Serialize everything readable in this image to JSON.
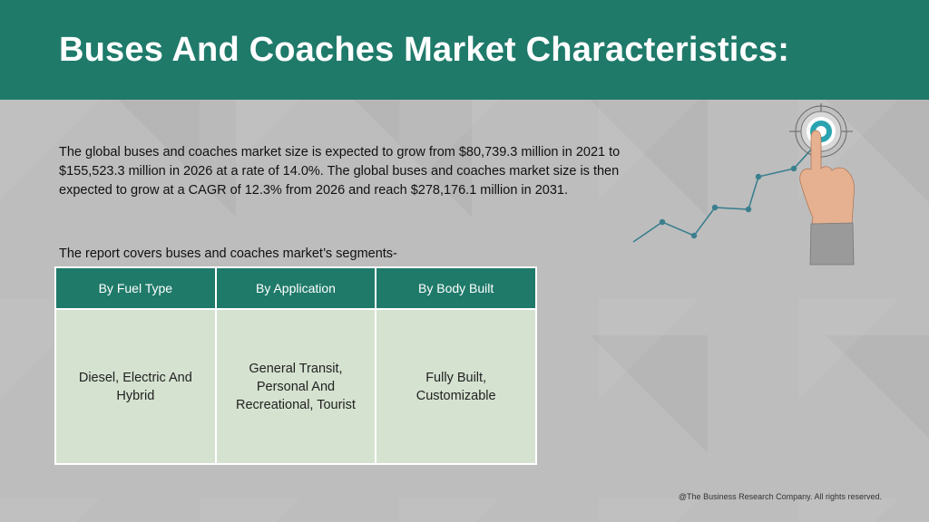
{
  "header": {
    "title": "Buses And Coaches Market Characteristics:"
  },
  "body": {
    "intro": "The global buses and coaches market size is expected to grow from $80,739.3 million in 2021 to $155,523.3 million in 2026 at a rate of 14.0%. The global buses and coaches market size is then expected to grow at a CAGR of 12.3% from 2026 and reach $278,176.1 million in 2031.",
    "segments_note": "The report covers buses and coaches market’s segments-"
  },
  "segments_table": {
    "columns": [
      "By Fuel Type",
      "By Application",
      "By Body Built"
    ],
    "cells": [
      "Diesel, Electric And Hybrid",
      "General Transit, Personal And Recreational, Tourist",
      "Fully Built, Customizable"
    ]
  },
  "graphic": {
    "icon": "growth-chart-target-hand-icon",
    "line_color": "#3b7f8f",
    "target_color": "#2aa3b0"
  },
  "footer": {
    "copyright": "@The Business Research Company. All rights reserved."
  },
  "colors": {
    "accent": "#1f7a6a",
    "cell_background": "#d5e2d0",
    "page_background": "#bdbdbd"
  }
}
